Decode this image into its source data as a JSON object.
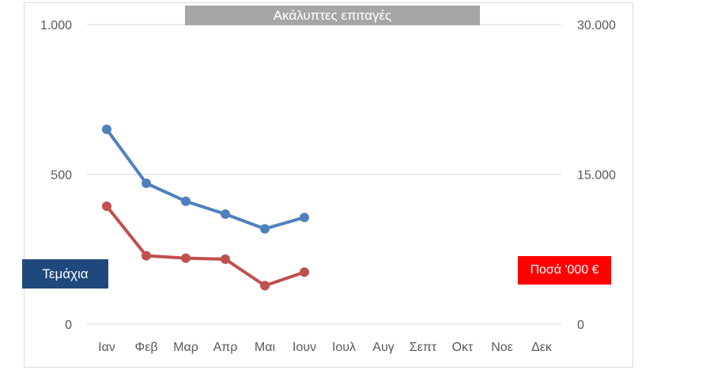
{
  "chart_data": {
    "type": "line",
    "title": "Ακάλυπτες επιταγές",
    "categories": [
      "Ιαν",
      "Φεβ",
      "Μαρ",
      "Απρ",
      "Μαι",
      "Ιουν",
      "Ιουλ",
      "Αυγ",
      "Σεπτ",
      "Οκτ",
      "Νοε",
      "Δεκ"
    ],
    "y_left": {
      "label": "Τεμάχια",
      "range": [
        0,
        1000
      ],
      "ticks": [
        0,
        500,
        1000
      ],
      "tick_labels": [
        "0",
        "500",
        "1.000"
      ]
    },
    "y_right": {
      "label": "Ποσά '000 €",
      "range": [
        0,
        30000
      ],
      "ticks": [
        0,
        15000,
        30000
      ],
      "tick_labels": [
        "0",
        "15.000",
        "30.000"
      ]
    },
    "series": [
      {
        "axis": "left",
        "color": "#4f81bd",
        "values": [
          650,
          470,
          410,
          367,
          318,
          356,
          null,
          null,
          null,
          null,
          null,
          null
        ]
      },
      {
        "axis": "right",
        "color": "#c0504d",
        "values": [
          11800,
          6850,
          6600,
          6500,
          3850,
          5200,
          null,
          null,
          null,
          null,
          null,
          null
        ]
      }
    ],
    "grid": true,
    "legend": "none"
  }
}
